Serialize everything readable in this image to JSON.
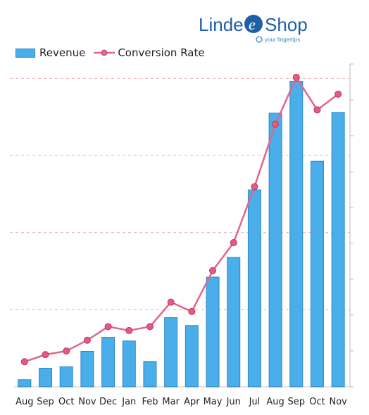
{
  "logo": {
    "text_left": "Linde",
    "text_mark": "e",
    "text_right": "Shop",
    "tagline": "your fingertips"
  },
  "chart_data": {
    "type": "bar",
    "categories": [
      "Aug",
      "Sep",
      "Oct",
      "Nov",
      "Dec",
      "Jan",
      "Feb",
      "Mar",
      "Apr",
      "May",
      "Jun",
      "Jul",
      "Aug",
      "Sep",
      "Oct",
      "Nov"
    ],
    "series": [
      {
        "name": "Revenue",
        "type": "bar",
        "color": "#4aaeea",
        "values": [
          2,
          5.2,
          5.6,
          9.9,
          13.8,
          12.8,
          7.1,
          19.3,
          17.1,
          30.6,
          36.1,
          54.9,
          76.3,
          85.2,
          62.9,
          76.5
        ]
      },
      {
        "name": "Conversion Rate",
        "type": "line",
        "color": "#e0668c",
        "values": [
          7,
          9,
          10,
          13,
          16.8,
          15.7,
          16.8,
          23.6,
          21,
          32.4,
          40.2,
          55.8,
          73.2,
          86.3,
          77.2,
          81.6
        ]
      }
    ],
    "ylim": [
      0,
      90
    ],
    "grid": true,
    "legend": "top-left"
  }
}
